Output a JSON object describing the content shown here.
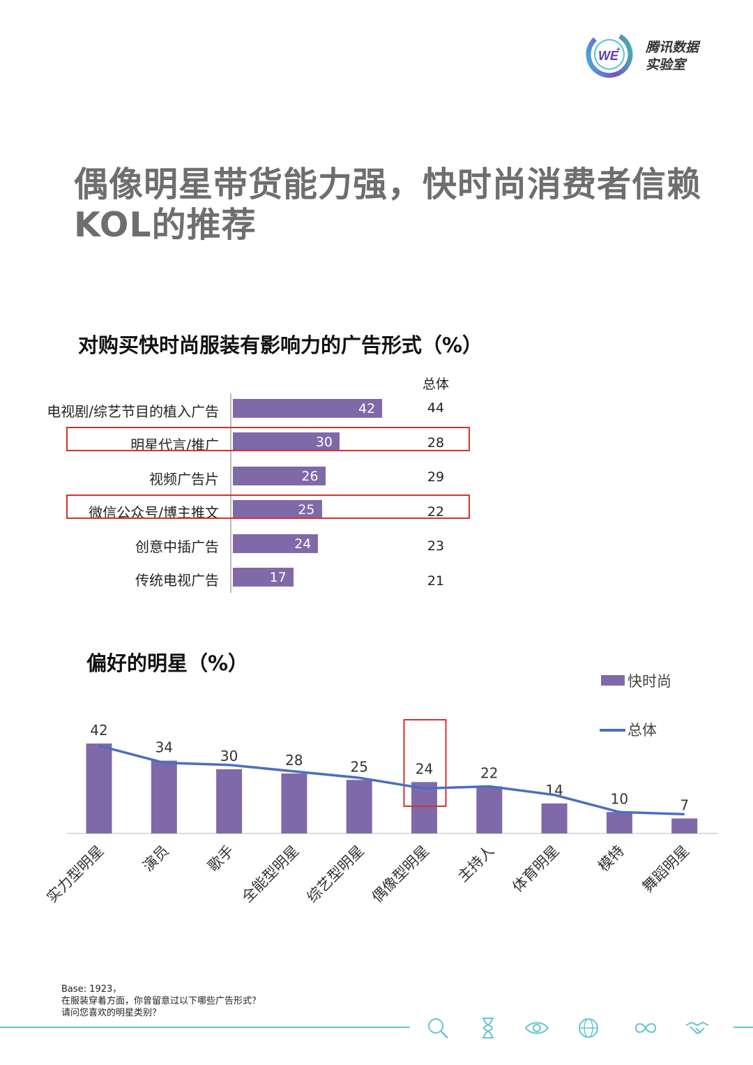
{
  "logo": {
    "mark_text": "WE",
    "mark_sup": "+",
    "line1": "腾讯数据",
    "line2": "实验室"
  },
  "title": {
    "line1": "偶像明星带货能力强，快时尚消费者信赖",
    "line2": "KOL的推荐"
  },
  "colors": {
    "bar": "#8069a8",
    "line": "#4a6fbf",
    "highlight": "#d9302c",
    "footer": "#66c4d1"
  },
  "chart_data": [
    {
      "type": "bar",
      "orientation": "horizontal",
      "title": "对购买快时尚服装有影响力的广告形式（%）",
      "column_header": "总体",
      "categories": [
        "电视剧/综艺节目的植入广告",
        "明星代言/推广",
        "视频广告片",
        "微信公众号/博主推文",
        "创意中插广告",
        "传统电视广告"
      ],
      "series": [
        {
          "values": [
            42,
            30,
            26,
            25,
            24,
            17
          ]
        },
        {
          "name": "总体",
          "values": [
            44,
            28,
            29,
            22,
            23,
            21
          ]
        }
      ],
      "highlighted_categories": [
        "明星代言/推广",
        "微信公众号/博主推文"
      ]
    },
    {
      "type": "bar",
      "title": "偏好的明星（%）",
      "categories": [
        "实力型明星",
        "演员",
        "歌手",
        "全能型明星",
        "综艺型明星",
        "偶像型明星",
        "主持人",
        "体育明星",
        "模特",
        "舞蹈明星"
      ],
      "series": [
        {
          "name": "快时尚",
          "type": "bar",
          "values": [
            42,
            34,
            30,
            28,
            25,
            24,
            22,
            14,
            10,
            7
          ]
        },
        {
          "name": "总体",
          "type": "line",
          "values": [
            41,
            33,
            32,
            29,
            26,
            21,
            22,
            18,
            10,
            9
          ]
        }
      ],
      "legend_position": "top-right",
      "highlighted_categories": [
        "偶像型明星"
      ]
    }
  ],
  "footnote": {
    "line1": "Base: 1923，",
    "line2": "在服装穿着方面，你曾留意过以下哪些广告形式？",
    "line3": "请问您喜欢的明星类别？"
  },
  "footer_icons": [
    "search-icon",
    "hourglass-icon",
    "eye-icon",
    "globe-icon",
    "infinity-icon",
    "handshake-icon"
  ]
}
